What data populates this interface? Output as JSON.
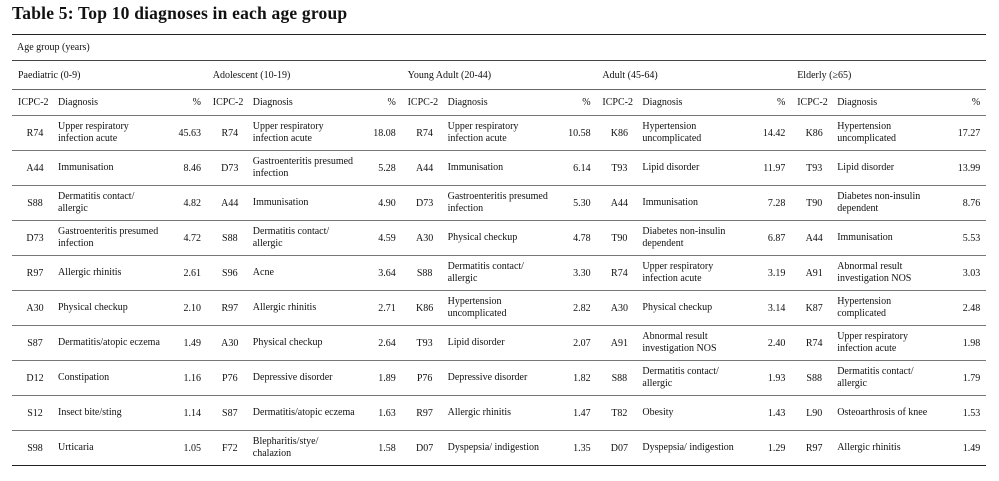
{
  "title": "Table 5:  Top 10 diagnoses in each age group",
  "age_group_caption": "Age group (years)",
  "groups": [
    {
      "name": "Paediatric (0-9)"
    },
    {
      "name": "Adolescent (10-19)"
    },
    {
      "name": "Young Adult (20-44)"
    },
    {
      "name": "Adult (45-64)"
    },
    {
      "name": "Elderly (≥65)"
    }
  ],
  "col_headers": {
    "code": "ICPC-2",
    "diagnosis": "Diagnosis",
    "pct": "%"
  },
  "rows": [
    [
      {
        "code": "R74",
        "diag": "Upper respiratory infection acute",
        "pct": "45.63"
      },
      {
        "code": "R74",
        "diag": "Upper respiratory infection acute",
        "pct": "18.08"
      },
      {
        "code": "R74",
        "diag": "Upper respiratory infection acute",
        "pct": "10.58"
      },
      {
        "code": "K86",
        "diag": "Hypertension uncomplicated",
        "pct": "14.42"
      },
      {
        "code": "K86",
        "diag": "Hypertension uncomplicated",
        "pct": "17.27"
      }
    ],
    [
      {
        "code": "A44",
        "diag": "Immunisation",
        "pct": "8.46"
      },
      {
        "code": "D73",
        "diag": "Gastroenteritis presumed infection",
        "pct": "5.28"
      },
      {
        "code": "A44",
        "diag": "Immunisation",
        "pct": "6.14"
      },
      {
        "code": "T93",
        "diag": "Lipid disorder",
        "pct": "11.97"
      },
      {
        "code": "T93",
        "diag": "Lipid disorder",
        "pct": "13.99"
      }
    ],
    [
      {
        "code": "S88",
        "diag": "Dermatitis contact/ allergic",
        "pct": "4.82"
      },
      {
        "code": "A44",
        "diag": "Immunisation",
        "pct": "4.90"
      },
      {
        "code": "D73",
        "diag": "Gastroenteritis presumed infection",
        "pct": "5.30"
      },
      {
        "code": "A44",
        "diag": "Immunisation",
        "pct": "7.28"
      },
      {
        "code": "T90",
        "diag": "Diabetes non-insulin dependent",
        "pct": "8.76"
      }
    ],
    [
      {
        "code": "D73",
        "diag": "Gastroenteritis presumed infection",
        "pct": "4.72"
      },
      {
        "code": "S88",
        "diag": "Dermatitis contact/ allergic",
        "pct": "4.59"
      },
      {
        "code": "A30",
        "diag": "Physical checkup",
        "pct": "4.78"
      },
      {
        "code": "T90",
        "diag": "Diabetes non-insulin dependent",
        "pct": "6.87"
      },
      {
        "code": "A44",
        "diag": "Immunisation",
        "pct": "5.53"
      }
    ],
    [
      {
        "code": "R97",
        "diag": "Allergic rhinitis",
        "pct": "2.61"
      },
      {
        "code": "S96",
        "diag": "Acne",
        "pct": "3.64"
      },
      {
        "code": "S88",
        "diag": "Dermatitis contact/ allergic",
        "pct": "3.30"
      },
      {
        "code": "R74",
        "diag": "Upper respiratory infection acute",
        "pct": "3.19"
      },
      {
        "code": "A91",
        "diag": "Abnormal result investigation NOS",
        "pct": "3.03"
      }
    ],
    [
      {
        "code": "A30",
        "diag": "Physical checkup",
        "pct": "2.10"
      },
      {
        "code": "R97",
        "diag": "Allergic rhinitis",
        "pct": "2.71"
      },
      {
        "code": "K86",
        "diag": "Hypertension uncomplicated",
        "pct": "2.82"
      },
      {
        "code": "A30",
        "diag": "Physical checkup",
        "pct": "3.14"
      },
      {
        "code": "K87",
        "diag": "Hypertension complicated",
        "pct": "2.48"
      }
    ],
    [
      {
        "code": "S87",
        "diag": "Dermatitis/atopic eczema",
        "pct": "1.49"
      },
      {
        "code": "A30",
        "diag": "Physical checkup",
        "pct": "2.64"
      },
      {
        "code": "T93",
        "diag": "Lipid disorder",
        "pct": "2.07"
      },
      {
        "code": "A91",
        "diag": "Abnormal result investigation NOS",
        "pct": "2.40"
      },
      {
        "code": "R74",
        "diag": "Upper respiratory infection acute",
        "pct": "1.98"
      }
    ],
    [
      {
        "code": "D12",
        "diag": "Constipation",
        "pct": "1.16"
      },
      {
        "code": "P76",
        "diag": "Depressive disorder",
        "pct": "1.89"
      },
      {
        "code": "P76",
        "diag": "Depressive disorder",
        "pct": "1.82"
      },
      {
        "code": "S88",
        "diag": "Dermatitis contact/ allergic",
        "pct": "1.93"
      },
      {
        "code": "S88",
        "diag": "Dermatitis contact/ allergic",
        "pct": "1.79"
      }
    ],
    [
      {
        "code": "S12",
        "diag": "Insect bite/sting",
        "pct": "1.14"
      },
      {
        "code": "S87",
        "diag": "Dermatitis/atopic eczema",
        "pct": "1.63"
      },
      {
        "code": "R97",
        "diag": "Allergic rhinitis",
        "pct": "1.47"
      },
      {
        "code": "T82",
        "diag": "Obesity",
        "pct": "1.43"
      },
      {
        "code": "L90",
        "diag": "Osteoarthrosis of knee",
        "pct": "1.53"
      }
    ],
    [
      {
        "code": "S98",
        "diag": "Urticaria",
        "pct": "1.05"
      },
      {
        "code": "F72",
        "diag": "Blepharitis/stye/ chalazion",
        "pct": "1.58"
      },
      {
        "code": "D07",
        "diag": "Dyspepsia/ indigestion",
        "pct": "1.35"
      },
      {
        "code": "D07",
        "diag": "Dyspepsia/ indigestion",
        "pct": "1.29"
      },
      {
        "code": "R97",
        "diag": "Allergic rhinitis",
        "pct": "1.49"
      }
    ]
  ]
}
